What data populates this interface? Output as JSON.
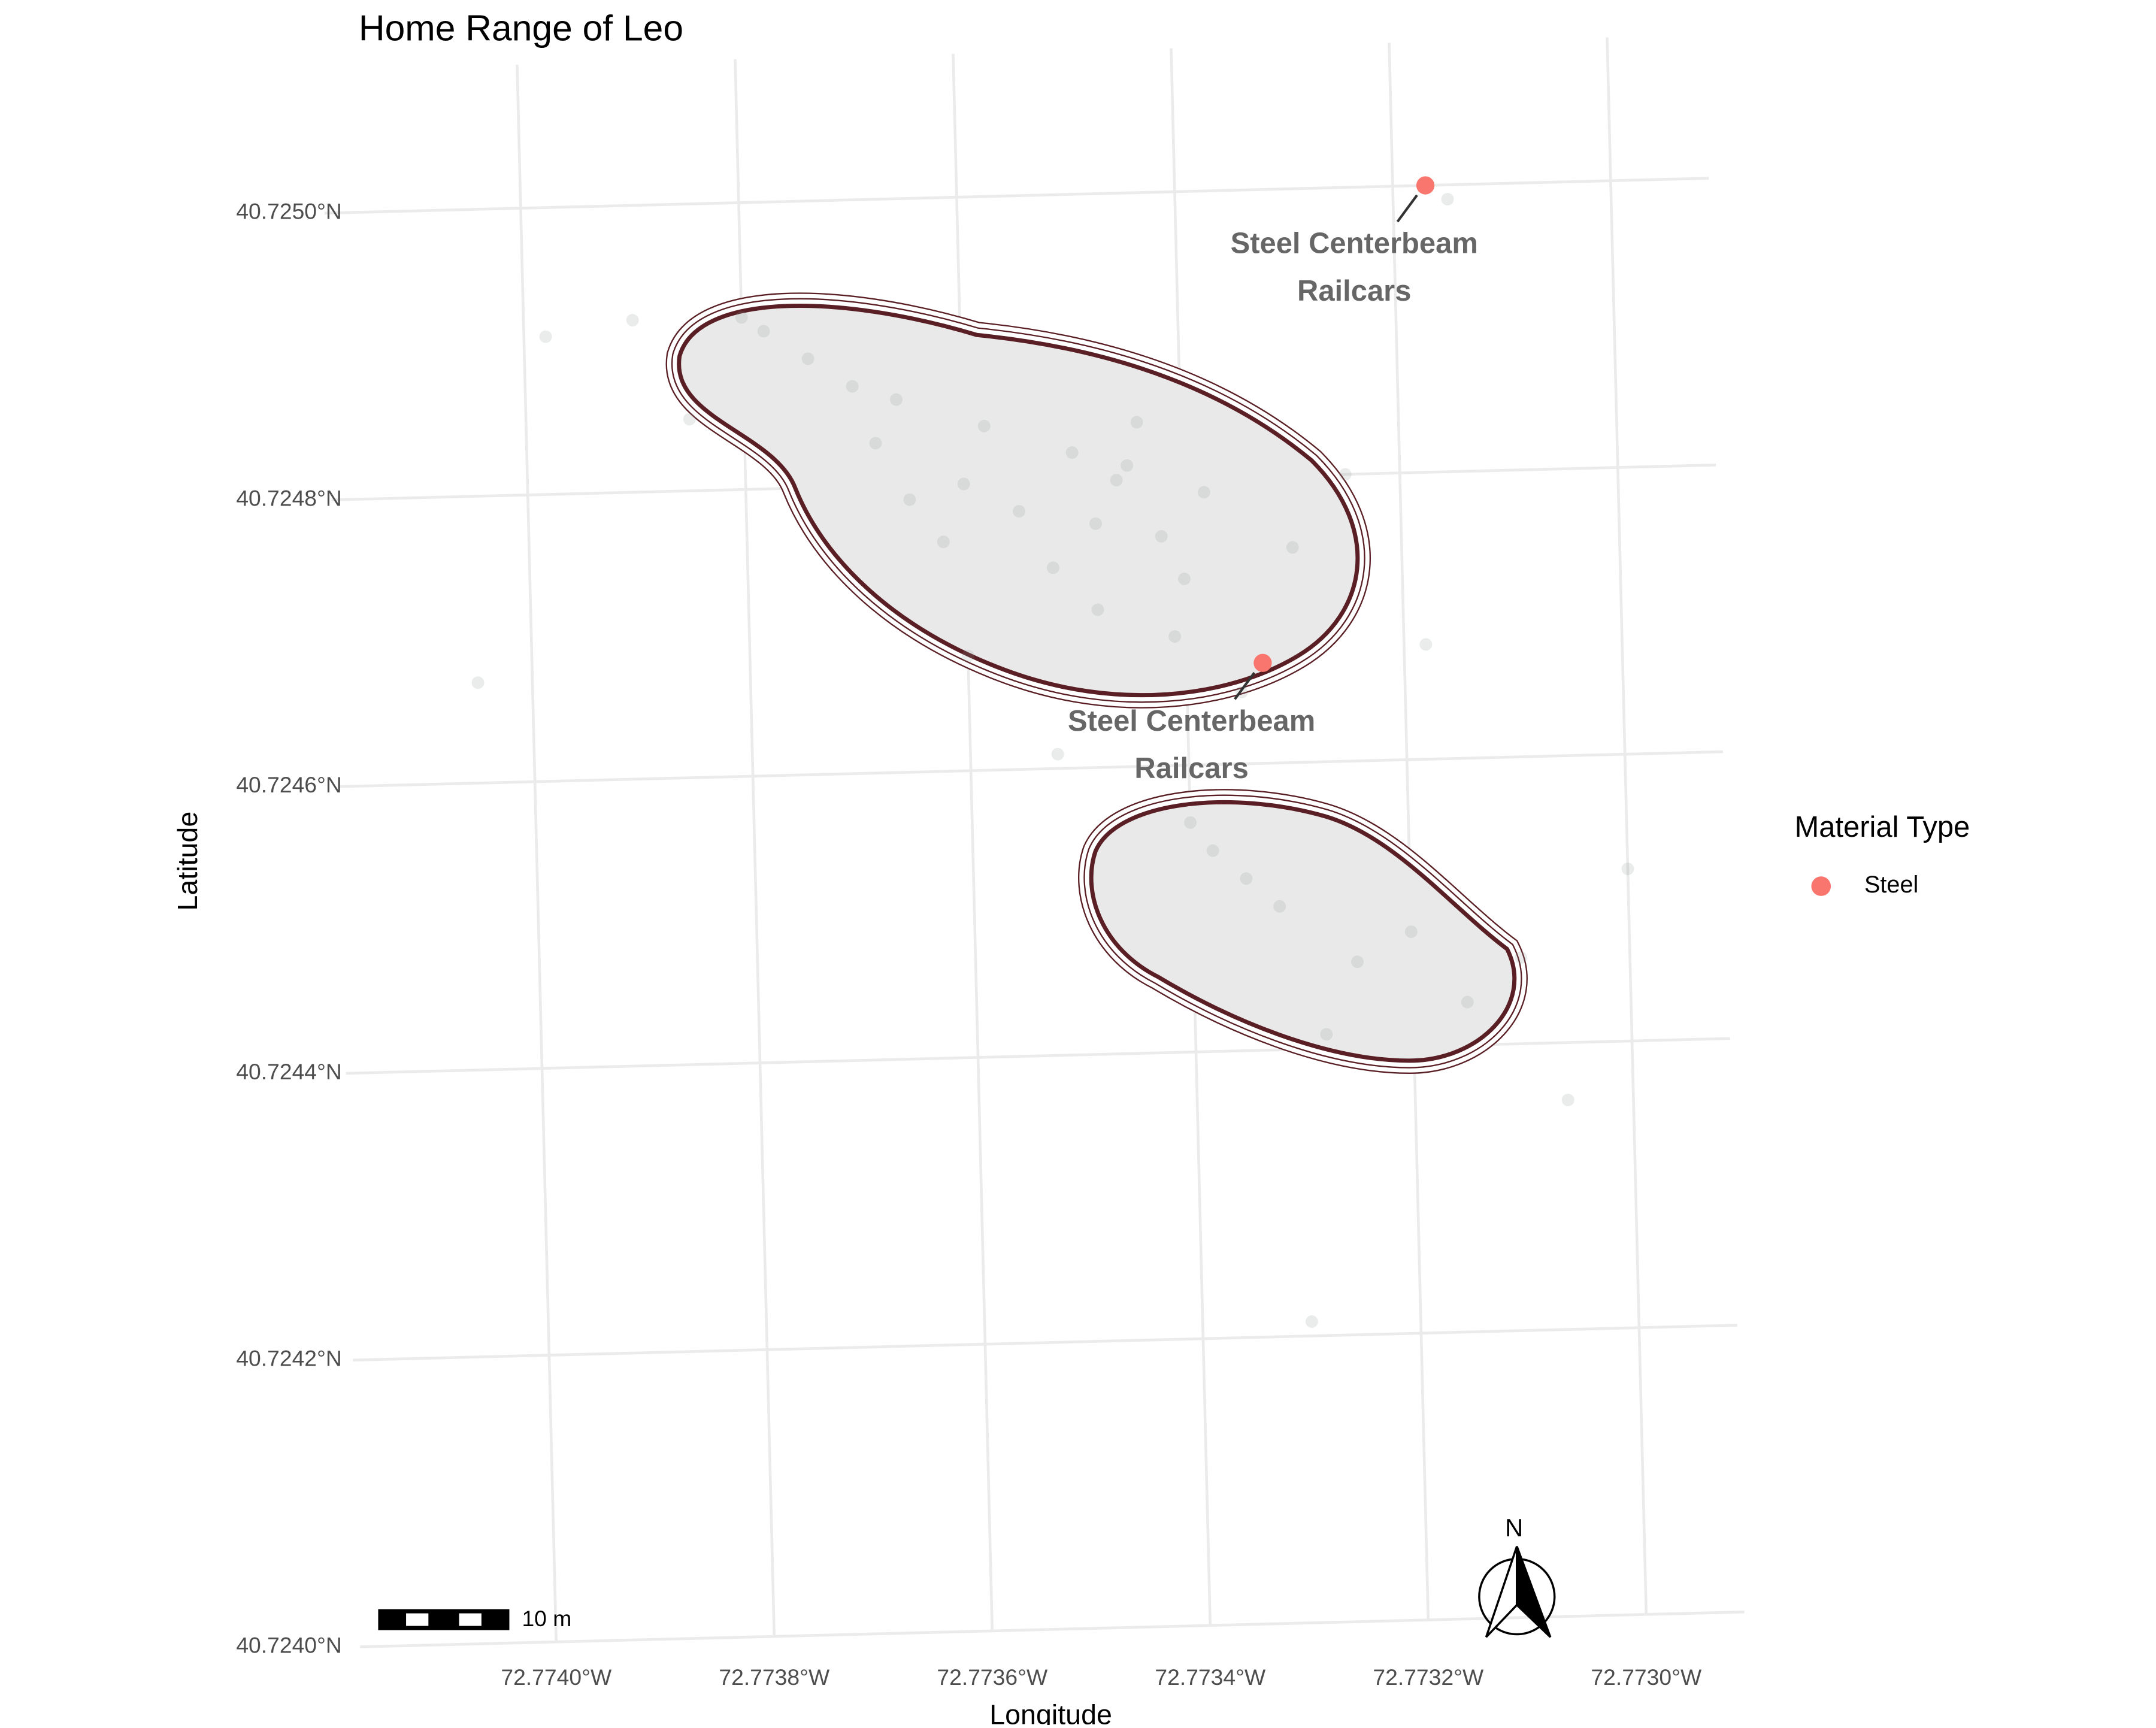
{
  "chart_data": {
    "type": "map",
    "title": "Home Range of Leo",
    "x_label": "Longitude",
    "y_label": "Latitude",
    "xlim": [
      -72.77418,
      -72.77291
    ],
    "ylim": [
      40.724,
      40.7251
    ],
    "xticks": [
      {
        "value": -72.774,
        "label": "72.7740°W"
      },
      {
        "value": -72.7738,
        "label": "72.7738°W"
      },
      {
        "value": -72.7736,
        "label": "72.7736°W"
      },
      {
        "value": -72.7734,
        "label": "72.7734°W"
      },
      {
        "value": -72.7732,
        "label": "72.7732°W"
      },
      {
        "value": -72.773,
        "label": "72.7730°W"
      }
    ],
    "yticks": [
      {
        "value": 40.724,
        "label": "40.7240°N"
      },
      {
        "value": 40.7242,
        "label": "40.7242°N"
      },
      {
        "value": 40.7244,
        "label": "40.7244°N"
      },
      {
        "value": 40.7246,
        "label": "40.7246°N"
      },
      {
        "value": 40.7248,
        "label": "40.7248°N"
      },
      {
        "value": 40.725,
        "label": "40.7250°N"
      }
    ],
    "grid": true,
    "gps_points": {
      "color": "#8c9898",
      "alpha": 0.18,
      "x": [
        -72.7736,
        -72.77355,
        -72.7735,
        -72.77362,
        -72.77348,
        -72.77358,
        -72.77365,
        -72.77352,
        -72.77345,
        -72.77368,
        -72.77342,
        -72.77346,
        -72.7734,
        -72.77344,
        -72.77338,
        -72.77348,
        -72.77341,
        -72.77374,
        -72.7737,
        -72.77378,
        -72.77366,
        -72.7738,
        -72.77385,
        -72.7733,
        -72.77335,
        -72.7736,
        -72.77325,
        -72.7739,
        -72.77335,
        -72.77332,
        -72.77338,
        -72.77325,
        -72.7732,
        -72.77315,
        -72.77328,
        -72.7731,
        -72.7734,
        -72.77398,
        -72.77318,
        -72.773,
        -72.77306,
        -72.77352,
        -72.7733,
        -72.77405,
        -72.77315
      ],
      "y": [
        40.7248,
        40.72478,
        40.72482,
        40.72476,
        40.72477,
        40.72484,
        40.72479,
        40.72474,
        40.72481,
        40.72483,
        40.72476,
        40.7248,
        40.72473,
        40.72484,
        40.72479,
        40.72471,
        40.72469,
        40.72489,
        40.72487,
        40.72491,
        40.72486,
        40.72492,
        40.72485,
        40.72475,
        40.72465,
        40.72468,
        40.7248,
        40.72492,
        40.72452,
        40.7245,
        40.72454,
        40.72446,
        40.72448,
        40.72443,
        40.72441,
        40.72446,
        40.72456,
        40.72491,
        40.72468,
        40.72452,
        40.72436,
        40.72461,
        40.72421,
        40.72467,
        40.72499
      ]
    },
    "legend_title": "Material Type",
    "legend_position": "right",
    "series": [
      {
        "name": "Steel",
        "color": "#f8766d",
        "x": [
          -72.77317,
          -72.77333
        ],
        "y": [
          40.725,
          40.72467
        ],
        "labels": [
          [
            "Steel Centerbeam",
            "Railcars"
          ],
          [
            "Steel Centerbeam",
            "Railcars"
          ]
        ]
      }
    ],
    "scale_bar_label": "10 m",
    "north_label": "N"
  }
}
